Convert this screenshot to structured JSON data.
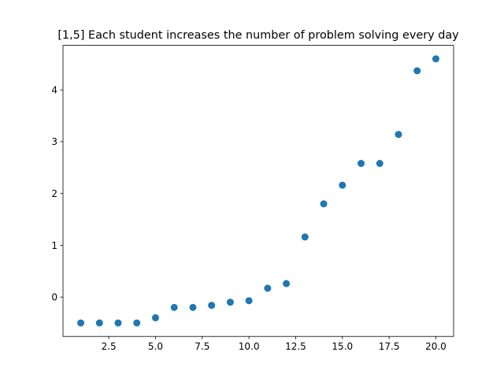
{
  "chart_data": {
    "type": "scatter",
    "title": "[1,5] Each student increases the number of problem solving every day",
    "xlabel": "",
    "ylabel": "",
    "xlim": [
      0.05,
      20.95
    ],
    "ylim": [
      -0.76,
      4.86
    ],
    "grid": false,
    "marker_color": "#1f77b4",
    "x_ticks": [
      2.5,
      5.0,
      7.5,
      10.0,
      12.5,
      15.0,
      17.5,
      20.0
    ],
    "x_tick_labels": [
      "2.5",
      "5.0",
      "7.5",
      "10.0",
      "12.5",
      "15.0",
      "17.5",
      "20.0"
    ],
    "y_ticks": [
      0,
      1,
      2,
      3,
      4
    ],
    "y_tick_labels": [
      "0",
      "1",
      "2",
      "3",
      "4"
    ],
    "series": [
      {
        "x": [
          1,
          2,
          3,
          4,
          5,
          6,
          7,
          8,
          9,
          10,
          11,
          12,
          13,
          14,
          15,
          16,
          17,
          18,
          19,
          20
        ],
        "y": [
          -0.5,
          -0.5,
          -0.5,
          -0.5,
          -0.4,
          -0.2,
          -0.2,
          -0.16,
          -0.1,
          -0.07,
          0.17,
          0.26,
          1.16,
          1.8,
          2.16,
          2.58,
          2.58,
          3.14,
          4.37,
          4.6
        ]
      }
    ]
  }
}
